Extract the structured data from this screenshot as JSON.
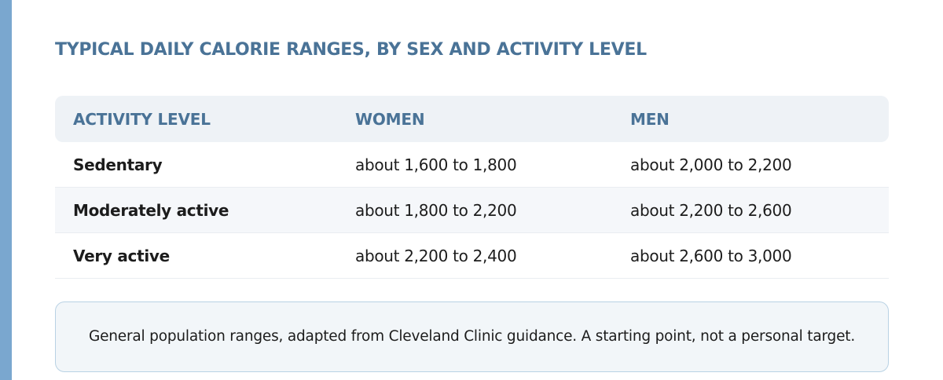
{
  "colors": {
    "accent_bar": "#7aa7cf",
    "heading_text": "#4a7397",
    "header_bg": "#eef2f6",
    "note_bg": "#f2f6f9",
    "note_border": "#b9d2e4"
  },
  "title": "TYPICAL DAILY CALORIE RANGES, BY SEX AND ACTIVITY LEVEL",
  "table": {
    "headers": [
      "ACTIVITY LEVEL",
      "WOMEN",
      "MEN"
    ],
    "rows": [
      {
        "activity": "Sedentary",
        "women": "about 1,600 to 1,800",
        "men": "about 2,000 to 2,200"
      },
      {
        "activity": "Moderately active",
        "women": "about 1,800 to 2,200",
        "men": "about 2,200 to 2,600"
      },
      {
        "activity": "Very active",
        "women": "about 2,200 to 2,400",
        "men": "about 2,600 to 3,000"
      }
    ]
  },
  "note": "General population ranges, adapted from Cleveland Clinic guidance. A starting point, not a personal target."
}
